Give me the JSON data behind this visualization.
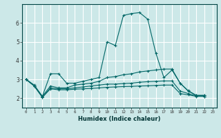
{
  "title": "",
  "xlabel": "Humidex (Indice chaleur)",
  "ylabel": "",
  "background_color": "#cce8e8",
  "grid_color": "#ffffff",
  "line_color": "#006666",
  "xlim": [
    -0.5,
    23.5
  ],
  "ylim": [
    1.5,
    7.0
  ],
  "xticks": [
    0,
    1,
    2,
    3,
    4,
    5,
    6,
    7,
    8,
    9,
    10,
    11,
    12,
    13,
    14,
    15,
    16,
    17,
    18,
    19,
    20,
    21,
    22,
    23
  ],
  "yticks": [
    2,
    3,
    4,
    5,
    6
  ],
  "lines": [
    [
      3.0,
      2.7,
      2.1,
      3.3,
      3.3,
      2.8,
      2.8,
      2.9,
      3.0,
      3.1,
      5.0,
      4.8,
      6.4,
      6.5,
      6.55,
      6.2,
      4.4,
      3.1,
      3.5,
      2.8,
      2.4,
      2.15,
      2.15
    ],
    [
      3.0,
      2.65,
      2.1,
      2.65,
      2.55,
      2.55,
      2.7,
      2.75,
      2.8,
      2.9,
      3.1,
      3.15,
      3.25,
      3.3,
      3.4,
      3.45,
      3.5,
      3.55,
      3.55,
      2.8,
      2.38,
      2.15,
      2.15
    ],
    [
      3.0,
      2.65,
      2.05,
      2.55,
      2.5,
      2.5,
      2.55,
      2.6,
      2.65,
      2.7,
      2.75,
      2.75,
      2.78,
      2.8,
      2.85,
      2.88,
      2.9,
      2.92,
      2.92,
      2.38,
      2.25,
      2.12,
      2.1
    ],
    [
      3.0,
      2.65,
      2.05,
      2.5,
      2.45,
      2.45,
      2.48,
      2.5,
      2.52,
      2.55,
      2.58,
      2.6,
      2.62,
      2.63,
      2.65,
      2.66,
      2.68,
      2.7,
      2.7,
      2.25,
      2.18,
      2.1,
      2.1
    ]
  ]
}
